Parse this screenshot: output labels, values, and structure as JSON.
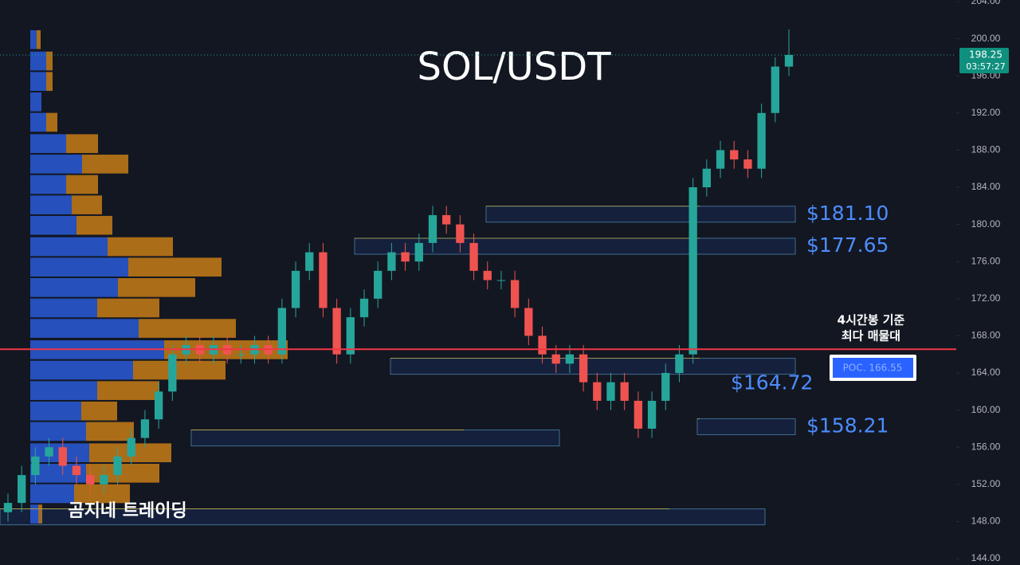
{
  "chart_data": {
    "type": "candlestick",
    "title": "SOL/USDT",
    "watermark": "곰지네 트레이딩",
    "ylim": [
      144,
      204
    ],
    "yticks": [
      {
        "value": 144,
        "label": "144.00"
      },
      {
        "value": 148,
        "label": "148.00"
      },
      {
        "value": 152,
        "label": "152.00"
      },
      {
        "value": 156,
        "label": "156.00"
      },
      {
        "value": 160,
        "label": "160.00"
      },
      {
        "value": 164,
        "label": "164.00"
      },
      {
        "value": 168,
        "label": "168.00"
      },
      {
        "value": 172,
        "label": "172.00"
      },
      {
        "value": 176,
        "label": "176.00"
      },
      {
        "value": 180,
        "label": "180.00"
      },
      {
        "value": 184,
        "label": "184.00"
      },
      {
        "value": 188,
        "label": "188.00"
      },
      {
        "value": 192,
        "label": "192.00"
      },
      {
        "value": 196,
        "label": "196.00"
      },
      {
        "value": 200,
        "label": "200.00"
      },
      {
        "value": 204,
        "label": "204.00"
      }
    ],
    "up_color": "#26a69a",
    "down_color": "#ef5350",
    "open": [
      149,
      150,
      153,
      155,
      156,
      154,
      153,
      152,
      153,
      155,
      157,
      159,
      162,
      166,
      167,
      166,
      167,
      166,
      166,
      167,
      166,
      171,
      175,
      177,
      171,
      166,
      170,
      172,
      175,
      177,
      176,
      178,
      181,
      180,
      178,
      175,
      174,
      174,
      171,
      168,
      166,
      165,
      166,
      163,
      161,
      163,
      161,
      158,
      161,
      164,
      166,
      184,
      186,
      188,
      187,
      186,
      192,
      197
    ],
    "high": [
      151,
      154,
      156,
      157,
      157,
      155,
      154,
      154,
      156,
      158,
      160,
      163,
      167,
      168,
      168,
      168,
      168,
      167,
      168,
      168,
      172,
      176,
      178,
      178,
      172,
      171,
      173,
      176,
      178,
      178,
      179,
      182,
      182,
      181,
      179,
      176,
      175,
      175,
      172,
      169,
      167,
      167,
      167,
      164,
      164,
      164,
      162,
      162,
      165,
      167,
      185,
      187,
      189,
      189,
      188,
      193,
      198,
      201
    ],
    "low": [
      148,
      149,
      152,
      154,
      153,
      152,
      151,
      151,
      152,
      154,
      156,
      158,
      161,
      165,
      165,
      165,
      165,
      165,
      165,
      165,
      165,
      170,
      174,
      170,
      165,
      165,
      169,
      171,
      174,
      175,
      175,
      177,
      179,
      177,
      174,
      173,
      173,
      170,
      167,
      165,
      164,
      164,
      162,
      160,
      160,
      160,
      157,
      157,
      160,
      163,
      165,
      183,
      185,
      186,
      185,
      185,
      191,
      196
    ],
    "close": [
      150,
      153,
      155,
      156,
      154,
      153,
      152,
      153,
      155,
      157,
      159,
      162,
      166,
      167,
      166,
      167,
      166,
      166,
      167,
      166,
      171,
      175,
      177,
      171,
      166,
      170,
      172,
      175,
      177,
      176,
      178,
      181,
      180,
      178,
      175,
      174,
      174,
      171,
      168,
      166,
      165,
      166,
      163,
      161,
      163,
      161,
      158,
      161,
      164,
      166,
      184,
      186,
      188,
      187,
      186,
      192,
      197,
      198.25
    ],
    "last_price": 198.25,
    "countdown": "03:57:27",
    "poc": {
      "value": 166.55,
      "label": "POC. 166.55",
      "color": "#f23645"
    },
    "poc_note": [
      "4시간봉 기준",
      "최다 매물대"
    ],
    "zones": [
      {
        "value": 181.1,
        "label": "$181.10"
      },
      {
        "value": 177.65,
        "label": "$177.65"
      },
      {
        "value": 164.72,
        "label": "$164.72"
      },
      {
        "value": 158.21,
        "label": "$158.21"
      },
      {
        "value": 157
      },
      {
        "value": 148.5
      }
    ],
    "profile": {
      "prices": [
        199.9,
        197.6,
        195.4,
        193.2,
        191.0,
        188.7,
        186.5,
        184.3,
        182.1,
        179.9,
        177.6,
        175.4,
        173.2,
        171.0,
        168.8,
        166.5,
        164.3,
        162.1,
        159.9,
        157.7,
        155.4,
        153.2,
        151.0,
        148.8
      ],
      "buy": [
        8,
        20,
        20,
        14,
        20,
        45,
        65,
        45,
        52,
        58,
        97,
        123,
        110,
        84,
        136,
        168,
        129,
        84,
        64,
        70,
        74,
        70,
        55,
        10
      ],
      "sell": [
        5,
        8,
        8,
        0,
        14,
        40,
        58,
        40,
        38,
        45,
        82,
        117,
        97,
        78,
        122,
        155,
        116,
        78,
        45,
        60,
        103,
        92,
        70,
        5
      ],
      "buy_color": "#2a5bd7",
      "sell_color": "#c77d15"
    }
  }
}
